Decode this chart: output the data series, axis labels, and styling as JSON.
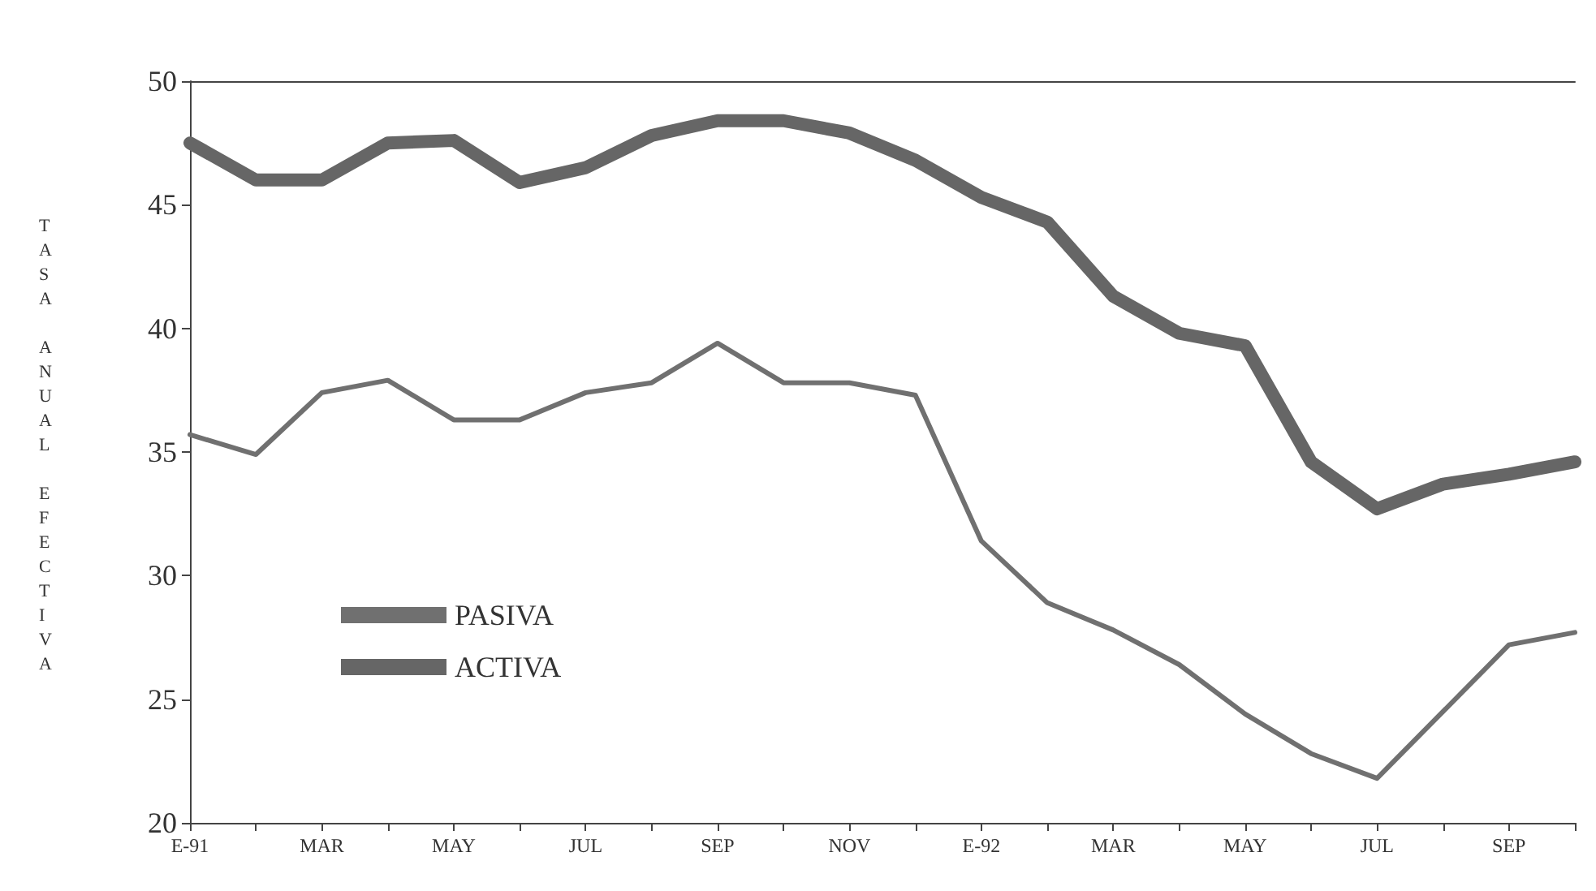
{
  "chart_data": {
    "type": "line",
    "ylabel": "TASA ANUAL EFECTIVA",
    "categories": [
      "E-91",
      null,
      "MAR",
      null,
      "MAY",
      null,
      "JUL",
      null,
      "SEP",
      null,
      "NOV",
      null,
      "E-92",
      null,
      "MAR",
      null,
      "MAY",
      null,
      "JUL",
      null,
      "SEP",
      null
    ],
    "ylim": [
      20,
      50
    ],
    "yticks": [
      20,
      25,
      30,
      35,
      40,
      45,
      50
    ],
    "grid": false,
    "legend": "bottom left",
    "marker": "none",
    "line_style": "solid",
    "series": [
      {
        "name": "PASIVA",
        "color": "#707070",
        "values": [
          35.7,
          34.9,
          37.4,
          37.9,
          36.3,
          36.3,
          37.4,
          37.8,
          39.4,
          37.8,
          37.8,
          37.3,
          31.4,
          28.9,
          27.8,
          26.4,
          24.4,
          22.8,
          21.8,
          24.5,
          27.2,
          27.7
        ]
      },
      {
        "name": "ACTIVA",
        "color": "#666666",
        "values": [
          47.5,
          46.0,
          46.0,
          47.5,
          47.6,
          45.9,
          46.5,
          47.8,
          48.4,
          48.4,
          47.9,
          46.8,
          45.3,
          44.3,
          41.3,
          39.8,
          39.3,
          34.6,
          32.7,
          33.7,
          34.1,
          34.6
        ]
      }
    ]
  }
}
